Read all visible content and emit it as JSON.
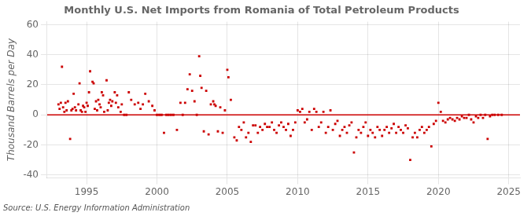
{
  "chart_data": {
    "type": "scatter",
    "title": "Monthly U.S. Net Imports from Romania of Total Petroleum Products",
    "y_label": "Thousand Barrels per Day",
    "annotation": "Source: U.S. Energy Information Administration",
    "xlim": [
      1992.2,
      2025.8
    ],
    "ylim": [
      -42,
      62
    ],
    "xticks": [
      1995,
      2000,
      2005,
      2010,
      2015,
      2020,
      2025
    ],
    "yticks": [
      -40,
      -20,
      0,
      20,
      40,
      60
    ],
    "grid": true,
    "color": "#cc0000",
    "marker": "square",
    "reference_lines": [
      {
        "value": 0,
        "color": "#cc0000"
      }
    ],
    "x": [
      1993.0,
      1993.08,
      1993.17,
      1993.25,
      1993.33,
      1993.42,
      1993.5,
      1993.58,
      1993.67,
      1993.83,
      1993.92,
      1994.0,
      1994.08,
      1994.17,
      1994.25,
      1994.42,
      1994.5,
      1994.58,
      1994.67,
      1994.75,
      1994.83,
      1994.92,
      1995.0,
      1995.08,
      1995.17,
      1995.25,
      1995.42,
      1995.5,
      1995.58,
      1995.67,
      1995.75,
      1995.83,
      1995.92,
      1996.0,
      1996.08,
      1996.17,
      1996.25,
      1996.42,
      1996.5,
      1996.58,
      1996.67,
      1996.75,
      1996.83,
      1997.0,
      1997.08,
      1997.17,
      1997.25,
      1997.42,
      1997.5,
      1997.67,
      1997.83,
      1998.0,
      1998.17,
      1998.42,
      1998.67,
      1998.83,
      1999.0,
      1999.17,
      1999.42,
      1999.67,
      1999.83,
      2000.0,
      2000.17,
      2000.33,
      2000.5,
      2000.67,
      2000.83,
      2001.0,
      2001.17,
      2001.42,
      2001.67,
      2001.83,
      2002.0,
      2002.17,
      2002.33,
      2002.5,
      2002.67,
      2002.83,
      2003.0,
      2003.08,
      2003.17,
      2003.33,
      2003.5,
      2003.67,
      2003.83,
      2004.0,
      2004.08,
      2004.17,
      2004.33,
      2004.5,
      2004.67,
      2004.83,
      2005.0,
      2005.08,
      2005.25,
      2005.5,
      2005.67,
      2005.83,
      2006.0,
      2006.17,
      2006.33,
      2006.5,
      2006.67,
      2006.83,
      2007.0,
      2007.17,
      2007.33,
      2007.5,
      2007.67,
      2007.83,
      2008.0,
      2008.17,
      2008.33,
      2008.5,
      2008.67,
      2008.83,
      2009.0,
      2009.17,
      2009.33,
      2009.5,
      2009.67,
      2009.83,
      2010.0,
      2010.17,
      2010.33,
      2010.5,
      2010.67,
      2010.83,
      2011.0,
      2011.17,
      2011.33,
      2011.5,
      2011.67,
      2011.83,
      2012.0,
      2012.17,
      2012.33,
      2012.5,
      2012.67,
      2012.83,
      2013.0,
      2013.17,
      2013.33,
      2013.5,
      2013.67,
      2013.83,
      2014.0,
      2014.17,
      2014.33,
      2014.5,
      2014.67,
      2014.83,
      2015.0,
      2015.17,
      2015.33,
      2015.5,
      2015.67,
      2015.83,
      2016.0,
      2016.17,
      2016.33,
      2016.5,
      2016.67,
      2016.83,
      2017.0,
      2017.17,
      2017.33,
      2017.5,
      2017.67,
      2017.83,
      2018.0,
      2018.17,
      2018.33,
      2018.5,
      2018.67,
      2018.83,
      2019.0,
      2019.17,
      2019.33,
      2019.5,
      2019.67,
      2019.83,
      2020.0,
      2020.17,
      2020.33,
      2020.5,
      2020.67,
      2020.83,
      2021.0,
      2021.17,
      2021.33,
      2021.5,
      2021.67,
      2021.83,
      2022.0,
      2022.17,
      2022.33,
      2022.5,
      2022.67,
      2022.83,
      2023.0,
      2023.17,
      2023.33,
      2023.5,
      2023.67,
      2023.83,
      2024.0,
      2024.25,
      2024.5
    ],
    "values": [
      7,
      4,
      8,
      32,
      5,
      2,
      8,
      3,
      9,
      -16,
      3,
      4,
      14,
      5,
      3,
      7,
      21,
      3,
      2,
      6,
      5,
      2,
      8,
      6,
      15,
      29,
      22,
      21,
      4,
      9,
      3,
      10,
      7,
      5,
      15,
      13,
      2,
      23,
      3,
      8,
      10,
      6,
      9,
      15,
      8,
      13,
      5,
      2,
      7,
      0,
      0,
      15,
      10,
      7,
      8,
      4,
      7,
      14,
      9,
      6,
      3,
      0,
      0,
      0,
      -12,
      0,
      0,
      0,
      0,
      -10,
      8,
      0,
      8,
      17,
      27,
      16,
      9,
      0,
      39,
      26,
      18,
      -11,
      16,
      -13,
      7,
      9,
      7,
      6,
      -11,
      5,
      -12,
      3,
      30,
      25,
      10,
      -15,
      -17,
      -8,
      -10,
      -5,
      -15,
      -12,
      -18,
      -7,
      -7,
      -12,
      -8,
      -10,
      -6,
      -8,
      -8,
      -5,
      -10,
      -12,
      -7,
      -5,
      -8,
      -10,
      -6,
      -14,
      -10,
      -5,
      3,
      2,
      4,
      -5,
      -3,
      2,
      -10,
      4,
      2,
      -8,
      -5,
      2,
      -12,
      -8,
      3,
      -10,
      -6,
      -4,
      -14,
      -10,
      -8,
      -12,
      -7,
      -5,
      -25,
      -15,
      -10,
      -12,
      -8,
      -5,
      -14,
      -10,
      -12,
      -15,
      -8,
      -10,
      -14,
      -10,
      -8,
      -12,
      -9,
      -6,
      -12,
      -8,
      -10,
      -12,
      -7,
      -9,
      -30,
      -15,
      -12,
      -15,
      -10,
      -8,
      -12,
      -10,
      -8,
      -21,
      -6,
      -4,
      8,
      2,
      -4,
      -5,
      -3,
      -2,
      -3,
      -4,
      -2,
      -3,
      -1,
      -2,
      -2,
      0,
      -3,
      -5,
      -1,
      -2,
      0,
      -2,
      0,
      -16,
      -1,
      0,
      0,
      0,
      0
    ]
  }
}
